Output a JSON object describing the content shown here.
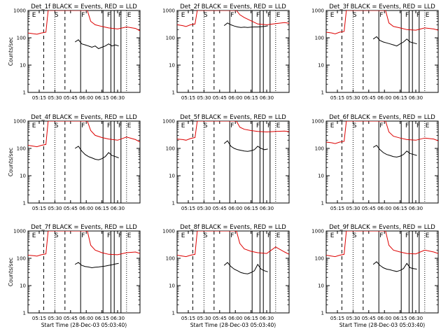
{
  "colors": {
    "events": "#000000",
    "lld": "#dd0000",
    "background": "#ffffff"
  },
  "chart_data": [
    {
      "type": "line",
      "title": "Det_1f BLACK = Events, RED = LLD",
      "xlabel": "",
      "ylabel": "Counts/sec",
      "yscale": "log",
      "ylim": [
        1,
        1000
      ],
      "y_ticks": [
        "1",
        "10",
        "100",
        "1000"
      ],
      "x_ticks": [
        "05:15",
        "05:30",
        "05:45",
        "06:00",
        "06:15",
        "06:30"
      ],
      "flags": [
        "E",
        "S",
        "F",
        "F",
        "F",
        "E"
      ],
      "series": [
        {
          "name": "LLD",
          "color": "#dd0000",
          "x": [
            0,
            5,
            8,
            12,
            16,
            18,
            22,
            28,
            33,
            38,
            43,
            48,
            53,
            56,
            60,
            66,
            72,
            80,
            88,
            96,
            100
          ],
          "y": [
            150,
            140,
            135,
            150,
            160,
            1000,
            1000,
            1000,
            1000,
            1000,
            1000,
            1000,
            1000,
            400,
            300,
            260,
            230,
            210,
            250,
            220,
            180
          ]
        },
        {
          "name": "Events",
          "color": "#000000",
          "x": [
            42,
            45,
            48,
            51,
            54,
            57,
            60,
            63,
            66,
            69,
            72,
            75,
            78,
            81
          ],
          "y": [
            70,
            85,
            60,
            55,
            50,
            45,
            50,
            40,
            45,
            50,
            60,
            50,
            55,
            50
          ]
        }
      ]
    },
    {
      "type": "line",
      "title": "Det_2f BLACK = Events, RED = LLD",
      "xlabel": "",
      "ylabel": "",
      "yscale": "log",
      "ylim": [
        1,
        1000
      ],
      "y_ticks": [
        "1",
        "10",
        "100",
        "1000"
      ],
      "x_ticks": [
        "05:15",
        "05:30",
        "05:45",
        "06:00",
        "06:15",
        "06:30"
      ],
      "flags": [
        "E",
        "S",
        "F",
        "F",
        "F",
        "E"
      ],
      "series": [
        {
          "name": "LLD",
          "color": "#dd0000",
          "x": [
            0,
            5,
            8,
            12,
            16,
            18,
            22,
            28,
            33,
            38,
            43,
            48,
            53,
            56,
            60,
            66,
            72,
            80,
            88,
            96,
            100
          ],
          "y": [
            300,
            280,
            260,
            300,
            320,
            1000,
            1000,
            1000,
            1000,
            1000,
            1000,
            1000,
            1000,
            700,
            550,
            420,
            320,
            300,
            330,
            360,
            340
          ]
        },
        {
          "name": "Events",
          "color": "#000000",
          "x": [
            42,
            45,
            48,
            51,
            54,
            57,
            60,
            63,
            66,
            69,
            72,
            75,
            78,
            81
          ],
          "y": [
            280,
            350,
            300,
            270,
            250,
            240,
            245,
            240,
            245,
            250,
            250,
            255,
            260,
            275
          ]
        }
      ]
    },
    {
      "type": "line",
      "title": "Det_3f BLACK = Events, RED = LLD",
      "xlabel": "",
      "ylabel": "",
      "yscale": "log",
      "ylim": [
        1,
        1000
      ],
      "y_ticks": [
        "1",
        "10",
        "100",
        "1000"
      ],
      "x_ticks": [
        "05:15",
        "05:30",
        "05:45",
        "06:00",
        "06:15",
        "06:30"
      ],
      "flags": [
        "E",
        "S",
        "F",
        "F",
        "F",
        "E"
      ],
      "series": [
        {
          "name": "LLD",
          "color": "#dd0000",
          "x": [
            0,
            5,
            8,
            12,
            16,
            18,
            22,
            28,
            33,
            38,
            43,
            48,
            53,
            56,
            60,
            66,
            72,
            80,
            88,
            96,
            100
          ],
          "y": [
            160,
            150,
            140,
            160,
            170,
            1000,
            1000,
            1000,
            1000,
            1000,
            1000,
            1000,
            1000,
            350,
            260,
            230,
            200,
            190,
            230,
            210,
            190
          ]
        },
        {
          "name": "Events",
          "color": "#000000",
          "x": [
            42,
            45,
            48,
            51,
            54,
            57,
            60,
            63,
            66,
            69,
            72,
            75,
            78,
            81
          ],
          "y": [
            90,
            110,
            80,
            70,
            65,
            60,
            55,
            50,
            60,
            70,
            90,
            70,
            65,
            60
          ]
        }
      ]
    },
    {
      "type": "line",
      "title": "Det_4f BLACK = Events, RED = LLD",
      "xlabel": "",
      "ylabel": "Counts/sec",
      "yscale": "log",
      "ylim": [
        1,
        1000
      ],
      "y_ticks": [
        "1",
        "10",
        "100",
        "1000"
      ],
      "x_ticks": [
        "05:15",
        "05:30",
        "05:45",
        "06:00",
        "06:15",
        "06:30"
      ],
      "flags": [
        "E",
        "S",
        "F",
        "F",
        "F",
        "E"
      ],
      "series": [
        {
          "name": "LLD",
          "color": "#dd0000",
          "x": [
            0,
            5,
            8,
            12,
            16,
            18,
            22,
            28,
            33,
            38,
            43,
            48,
            53,
            56,
            60,
            66,
            72,
            80,
            88,
            96,
            100
          ],
          "y": [
            130,
            120,
            115,
            130,
            140,
            1000,
            1000,
            1000,
            1000,
            1000,
            1000,
            1000,
            1000,
            450,
            300,
            250,
            220,
            200,
            260,
            210,
            170
          ]
        },
        {
          "name": "Events",
          "color": "#000000",
          "x": [
            42,
            45,
            48,
            51,
            54,
            57,
            60,
            63,
            66,
            69,
            72,
            75,
            78,
            81
          ],
          "y": [
            100,
            120,
            80,
            60,
            50,
            45,
            40,
            38,
            42,
            50,
            70,
            55,
            50,
            45
          ]
        }
      ]
    },
    {
      "type": "line",
      "title": "Det_5f BLACK = Events, RED = LLD",
      "xlabel": "",
      "ylabel": "",
      "yscale": "log",
      "ylim": [
        1,
        1000
      ],
      "y_ticks": [
        "1",
        "10",
        "100",
        "1000"
      ],
      "x_ticks": [
        "05:15",
        "05:30",
        "05:45",
        "06:00",
        "06:15",
        "06:30"
      ],
      "flags": [
        "E",
        "S",
        "F",
        "F",
        "F",
        "E"
      ],
      "series": [
        {
          "name": "LLD",
          "color": "#dd0000",
          "x": [
            0,
            5,
            8,
            12,
            16,
            18,
            22,
            28,
            33,
            38,
            43,
            48,
            53,
            56,
            60,
            66,
            72,
            80,
            88,
            96,
            100
          ],
          "y": [
            220,
            210,
            200,
            230,
            250,
            1000,
            1000,
            1000,
            1000,
            1000,
            1000,
            1000,
            1000,
            600,
            500,
            450,
            420,
            400,
            420,
            430,
            410
          ]
        },
        {
          "name": "Events",
          "color": "#000000",
          "x": [
            42,
            45,
            48,
            51,
            54,
            57,
            60,
            63,
            66,
            69,
            72,
            75,
            78,
            81
          ],
          "y": [
            150,
            190,
            120,
            100,
            90,
            85,
            80,
            78,
            82,
            90,
            120,
            100,
            90,
            95
          ]
        }
      ]
    },
    {
      "type": "line",
      "title": "Det_6f BLACK = Events, RED = LLD",
      "xlabel": "",
      "ylabel": "",
      "yscale": "log",
      "ylim": [
        1,
        1000
      ],
      "y_ticks": [
        "1",
        "10",
        "100",
        "1000"
      ],
      "x_ticks": [
        "05:15",
        "05:30",
        "05:45",
        "06:00",
        "06:15",
        "06:30"
      ],
      "flags": [
        "E",
        "S",
        "F",
        "F",
        "F",
        "E"
      ],
      "series": [
        {
          "name": "LLD",
          "color": "#dd0000",
          "x": [
            0,
            5,
            8,
            12,
            16,
            18,
            22,
            28,
            33,
            38,
            43,
            48,
            53,
            56,
            60,
            66,
            72,
            80,
            88,
            96,
            100
          ],
          "y": [
            170,
            160,
            150,
            170,
            180,
            1000,
            1000,
            1000,
            1000,
            1000,
            1000,
            1000,
            1000,
            400,
            280,
            240,
            210,
            200,
            240,
            220,
            190
          ]
        },
        {
          "name": "Events",
          "color": "#000000",
          "x": [
            42,
            45,
            48,
            51,
            54,
            57,
            60,
            63,
            66,
            69,
            72,
            75,
            78,
            81
          ],
          "y": [
            110,
            130,
            90,
            70,
            60,
            55,
            50,
            48,
            52,
            60,
            80,
            65,
            60,
            55
          ]
        }
      ]
    },
    {
      "type": "line",
      "title": "Det_7f BLACK = Events, RED = LLD",
      "xlabel": "Start Time (28-Dec-03 05:03:40)",
      "ylabel": "Counts/sec",
      "yscale": "log",
      "ylim": [
        1,
        1000
      ],
      "y_ticks": [
        "1",
        "10",
        "100",
        "1000"
      ],
      "x_ticks": [
        "05:15",
        "05:30",
        "05:45",
        "06:00",
        "06:15",
        "06:30"
      ],
      "flags": [
        "E",
        "S",
        "F",
        "F",
        "F",
        "E"
      ],
      "series": [
        {
          "name": "LLD",
          "color": "#dd0000",
          "x": [
            0,
            5,
            8,
            12,
            16,
            18,
            22,
            28,
            33,
            38,
            43,
            48,
            53,
            56,
            60,
            66,
            72,
            80,
            88,
            96,
            100
          ],
          "y": [
            130,
            125,
            120,
            135,
            145,
            1000,
            1000,
            1000,
            1000,
            1000,
            1000,
            1000,
            1000,
            300,
            200,
            160,
            140,
            135,
            160,
            170,
            150
          ]
        },
        {
          "name": "Events",
          "color": "#000000",
          "x": [
            42,
            45,
            48,
            51,
            54,
            57,
            60,
            63,
            66,
            69,
            72,
            75,
            78,
            81
          ],
          "y": [
            60,
            70,
            55,
            50,
            48,
            45,
            47,
            48,
            50,
            52,
            55,
            58,
            62,
            65
          ]
        }
      ]
    },
    {
      "type": "line",
      "title": "Det_8f BLACK = Events, RED = LLD",
      "xlabel": "Start Time (28-Dec-03 05:03:40)",
      "ylabel": "",
      "yscale": "log",
      "ylim": [
        1,
        1000
      ],
      "y_ticks": [
        "1",
        "10",
        "100",
        "1000"
      ],
      "x_ticks": [
        "05:15",
        "05:30",
        "05:45",
        "06:00",
        "06:15",
        "06:30"
      ],
      "flags": [
        "E",
        "S",
        "F",
        "F",
        "F",
        "E"
      ],
      "series": [
        {
          "name": "LLD",
          "color": "#dd0000",
          "x": [
            0,
            5,
            8,
            12,
            16,
            18,
            22,
            28,
            33,
            38,
            43,
            48,
            53,
            56,
            60,
            66,
            72,
            80,
            88,
            96,
            100
          ],
          "y": [
            130,
            120,
            115,
            130,
            140,
            1000,
            1000,
            1000,
            1000,
            1000,
            1000,
            1000,
            1000,
            350,
            220,
            180,
            160,
            150,
            260,
            170,
            140
          ]
        },
        {
          "name": "Events",
          "color": "#000000",
          "x": [
            42,
            45,
            48,
            51,
            54,
            57,
            60,
            63,
            66,
            69,
            72,
            75,
            78,
            81
          ],
          "y": [
            55,
            70,
            50,
            40,
            35,
            30,
            28,
            27,
            30,
            35,
            60,
            40,
            35,
            32
          ]
        }
      ]
    },
    {
      "type": "line",
      "title": "Det_9f BLACK = Events, RED = LLD",
      "xlabel": "Start Time (28-Dec-03 05:03:40)",
      "ylabel": "",
      "yscale": "log",
      "ylim": [
        1,
        1000
      ],
      "y_ticks": [
        "1",
        "10",
        "100",
        "1000"
      ],
      "x_ticks": [
        "05:15",
        "05:30",
        "05:45",
        "06:00",
        "06:15",
        "06:30"
      ],
      "flags": [
        "E",
        "S",
        "F",
        "F",
        "F",
        "E"
      ],
      "series": [
        {
          "name": "LLD",
          "color": "#dd0000",
          "x": [
            0,
            5,
            8,
            12,
            16,
            18,
            22,
            28,
            33,
            38,
            43,
            48,
            53,
            56,
            60,
            66,
            72,
            80,
            88,
            96,
            100
          ],
          "y": [
            130,
            120,
            115,
            130,
            140,
            1000,
            1000,
            1000,
            1000,
            1000,
            1000,
            1000,
            1000,
            300,
            200,
            170,
            150,
            145,
            200,
            170,
            150
          ]
        },
        {
          "name": "Events",
          "color": "#000000",
          "x": [
            42,
            45,
            48,
            51,
            54,
            57,
            60,
            63,
            66,
            69,
            72,
            75,
            78,
            81
          ],
          "y": [
            60,
            75,
            55,
            45,
            40,
            38,
            35,
            33,
            36,
            42,
            65,
            45,
            42,
            40
          ]
        }
      ]
    }
  ]
}
